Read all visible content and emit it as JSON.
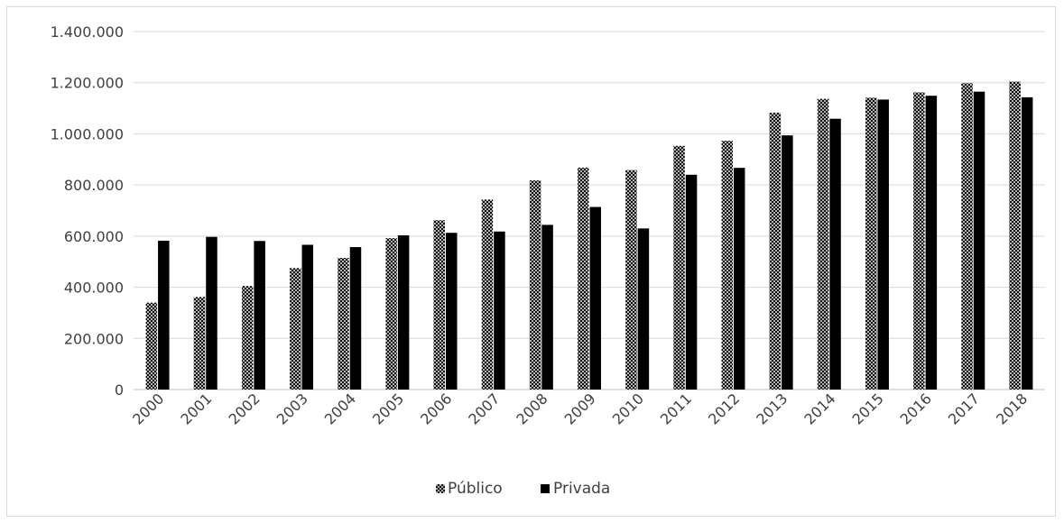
{
  "chart_data": {
    "type": "bar",
    "title": "",
    "xlabel": "",
    "ylabel": "",
    "categories": [
      "2000",
      "2001",
      "2002",
      "2003",
      "2004",
      "2005",
      "2006",
      "2007",
      "2008",
      "2009",
      "2010",
      "2011",
      "2012",
      "2013",
      "2014",
      "2015",
      "2016",
      "2017",
      "2018"
    ],
    "series": [
      {
        "name": "Público",
        "pattern": "crosshatch",
        "values": [
          340000,
          362000,
          405000,
          475000,
          515000,
          592000,
          662000,
          743000,
          818000,
          868000,
          858000,
          953000,
          973000,
          1083000,
          1137000,
          1141000,
          1162000,
          1198000,
          1204000
        ]
      },
      {
        "name": "Privada",
        "color": "#000000",
        "values": [
          582000,
          597000,
          581000,
          566000,
          557000,
          603000,
          613000,
          618000,
          644000,
          714000,
          630000,
          840000,
          867000,
          994000,
          1059000,
          1134000,
          1149000,
          1165000,
          1143000
        ]
      }
    ],
    "ylim": [
      0,
      1400000
    ],
    "yticks": [
      "0",
      "200.000",
      "400.000",
      "600.000",
      "800.000",
      "1.000.000",
      "1.200.000",
      "1.400.000"
    ],
    "ytick_values": [
      0,
      200000,
      400000,
      600000,
      800000,
      1000000,
      1200000,
      1400000
    ],
    "grid": true,
    "legend_position": "bottom"
  }
}
